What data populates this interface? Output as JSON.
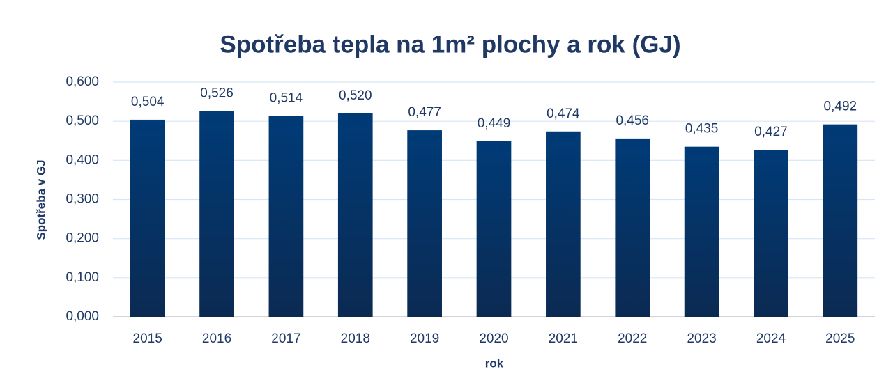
{
  "chart_data": {
    "type": "bar",
    "title": "Spotřeba tepla na 1m² plochy a rok (GJ)",
    "y_label": "Spotřeba v GJ",
    "x_label": "rok",
    "categories": [
      "2015",
      "2016",
      "2017",
      "2018",
      "2019",
      "2020",
      "2021",
      "2022",
      "2023",
      "2024",
      "2025"
    ],
    "values": [
      0.504,
      0.526,
      0.514,
      0.52,
      0.477,
      0.449,
      0.474,
      0.456,
      0.435,
      0.427,
      0.492
    ],
    "value_labels": [
      "0,504",
      "0,526",
      "0,514",
      "0,520",
      "0,477",
      "0,449",
      "0,474",
      "0,456",
      "0,435",
      "0,427",
      "0,492"
    ],
    "color": "#003b77",
    "ylim": [
      0,
      0.6
    ],
    "yticks": [
      {
        "value": 0,
        "label": "0,000"
      },
      {
        "value": 0.1,
        "label": "0,100"
      },
      {
        "value": 0.2,
        "label": "0,200"
      },
      {
        "value": 0.3,
        "label": "0,300"
      },
      {
        "value": 0.4,
        "label": "0,400"
      },
      {
        "value": 0.5,
        "label": "0,500"
      },
      {
        "value": 0.6,
        "label": "0,600"
      }
    ],
    "grid": true
  }
}
